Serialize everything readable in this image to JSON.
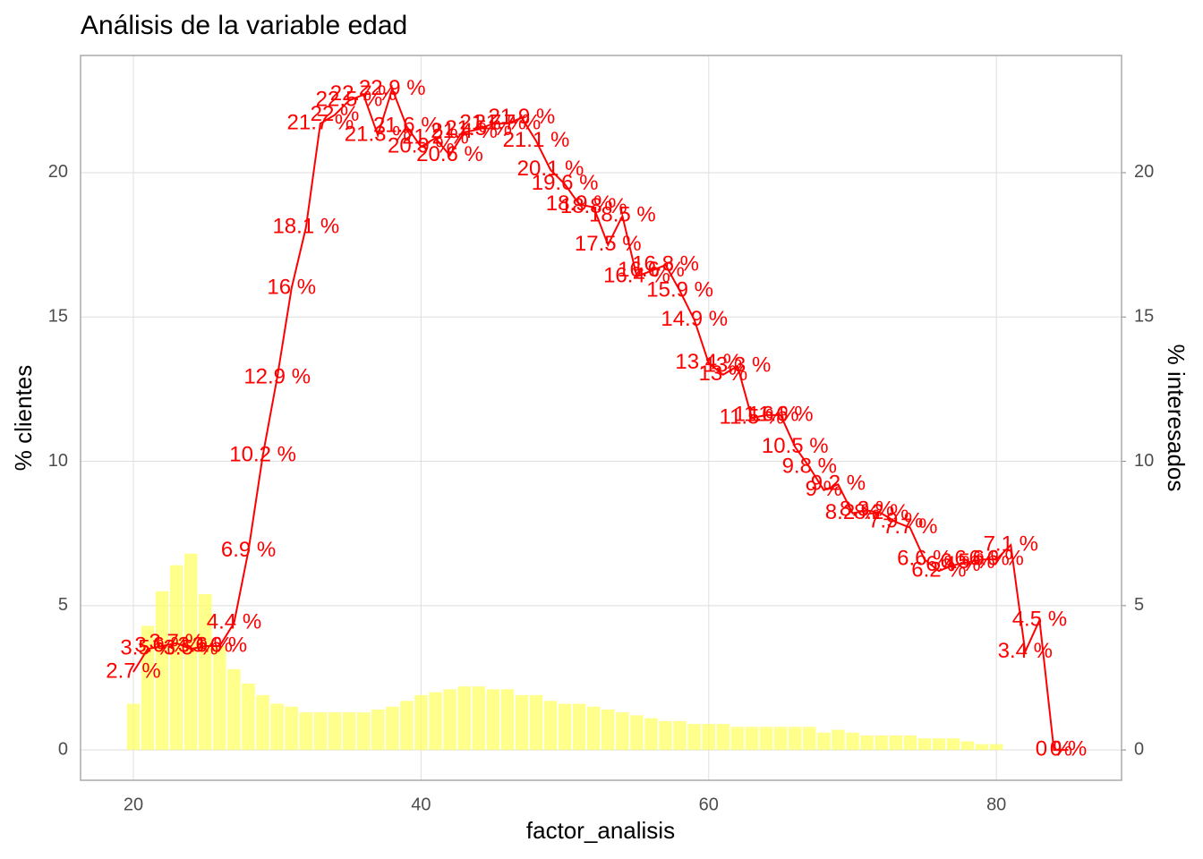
{
  "chart_data": {
    "type": "bar-line",
    "title": "Análisis de la variable edad",
    "x_label": "factor_analisis",
    "y_label": "% clientes",
    "y2_label": "% interesados",
    "xlim": [
      16.33,
      88.7
    ],
    "xticks": [
      20,
      40,
      60,
      80
    ],
    "ylim": [
      -1.05,
      24.06
    ],
    "yticks": [
      0,
      5,
      10,
      15,
      20
    ],
    "y2lim": [
      -1.05,
      24.06
    ],
    "y2ticks": [
      0,
      5,
      10,
      15,
      20
    ],
    "grid": true,
    "series": [
      {
        "name": "% clientes",
        "type": "bar",
        "color": "#ffff66",
        "x": [
          20,
          21,
          22,
          23,
          24,
          25,
          26,
          27,
          28,
          29,
          30,
          31,
          32,
          33,
          34,
          35,
          36,
          37,
          38,
          39,
          40,
          41,
          42,
          43,
          44,
          45,
          46,
          47,
          48,
          49,
          50,
          51,
          52,
          53,
          54,
          55,
          56,
          57,
          58,
          59,
          60,
          61,
          62,
          63,
          64,
          65,
          66,
          67,
          68,
          69,
          70,
          71,
          72,
          73,
          74,
          75,
          76,
          77,
          78,
          79,
          80
        ],
        "values": [
          1.6,
          4.3,
          5.5,
          6.4,
          6.8,
          5.4,
          3.6,
          2.8,
          2.3,
          1.9,
          1.6,
          1.5,
          1.3,
          1.3,
          1.3,
          1.3,
          1.3,
          1.4,
          1.5,
          1.7,
          1.9,
          2.0,
          2.1,
          2.2,
          2.2,
          2.1,
          2.1,
          1.9,
          1.9,
          1.7,
          1.6,
          1.6,
          1.5,
          1.4,
          1.3,
          1.2,
          1.1,
          1.0,
          1.0,
          0.9,
          0.9,
          0.9,
          0.8,
          0.8,
          0.8,
          0.8,
          0.8,
          0.8,
          0.6,
          0.7,
          0.6,
          0.5,
          0.5,
          0.5,
          0.5,
          0.4,
          0.4,
          0.4,
          0.3,
          0.2,
          0.2
        ]
      },
      {
        "name": "% interesados",
        "type": "line",
        "color": "#ff0000",
        "axis": "y2",
        "x": [
          20,
          21,
          22,
          23,
          24,
          25,
          26,
          27,
          28,
          29,
          30,
          31,
          32,
          33,
          34,
          35,
          36,
          37,
          38,
          39,
          40,
          41,
          42,
          43,
          44,
          45,
          46,
          47,
          48,
          49,
          50,
          51,
          52,
          53,
          54,
          55,
          56,
          57,
          58,
          59,
          60,
          61,
          62,
          63,
          64,
          65,
          66,
          67,
          68,
          69,
          70,
          71,
          72,
          73,
          74,
          75,
          76,
          77,
          78,
          79,
          80,
          81,
          82,
          83,
          84,
          85
        ],
        "values": [
          2.7,
          3.5,
          3.6,
          3.7,
          3.5,
          3.6,
          3.6,
          4.4,
          6.9,
          10.2,
          12.9,
          16,
          18.1,
          21.7,
          22,
          22.5,
          22.7,
          21.3,
          22.9,
          21.6,
          20.9,
          21.2,
          20.6,
          21.4,
          21.5,
          21.7,
          21.7,
          21.9,
          21.1,
          20.1,
          19.6,
          18.9,
          18.8,
          17.5,
          18.5,
          16.4,
          16.6,
          16.8,
          15.9,
          14.9,
          13.4,
          13,
          13.3,
          11.5,
          11.6,
          11.6,
          10.5,
          9.8,
          9,
          9.2,
          8.2,
          8.3,
          8.2,
          7.9,
          7.7,
          6.6,
          6.2,
          6.4,
          6.5,
          6.6,
          6.6,
          7.1,
          3.4,
          4.5,
          0,
          0
        ],
        "value_labels": [
          "2.7 %",
          "3.5 %",
          "3.6 %",
          "3.7 %",
          "3.5 %",
          "3.6 %",
          "3.6 %",
          "4.4 %",
          "6.9 %",
          "10.2 %",
          "12.9 %",
          "16 %",
          "18.1 %",
          "21.7 %",
          "22 %",
          "22.5 %",
          "22.7 %",
          "21.3 %",
          "22.9 %",
          "21.6 %",
          "20.9 %",
          "21.2 %",
          "20.6 %",
          "21.4 %",
          "21.5 %",
          "21.7 %",
          "21.7 %",
          "21.9 %",
          "21.1 %",
          "20.1 %",
          "19.6 %",
          "18.9 %",
          "18.8 %",
          "17.5 %",
          "18.5 %",
          "16.4 %",
          "16.6 %",
          "16.8 %",
          "15.9 %",
          "14.9 %",
          "13.4 %",
          "13 %",
          "13.3 %",
          "11.5 %",
          "11.6 %",
          "11.6 %",
          "10.5 %",
          "9.8 %",
          "9 %",
          "9.2 %",
          "8.2 %",
          "8.3 %",
          "8.2 %",
          "7.9 %",
          "7.7 %",
          "6.6 %",
          "6.2 %",
          "6.4 %",
          "6.5 %",
          "6.6 %",
          "6.6 %",
          "7.1 %",
          "3.4 %",
          "4.5 %",
          "0 %",
          "0 %"
        ]
      }
    ]
  }
}
